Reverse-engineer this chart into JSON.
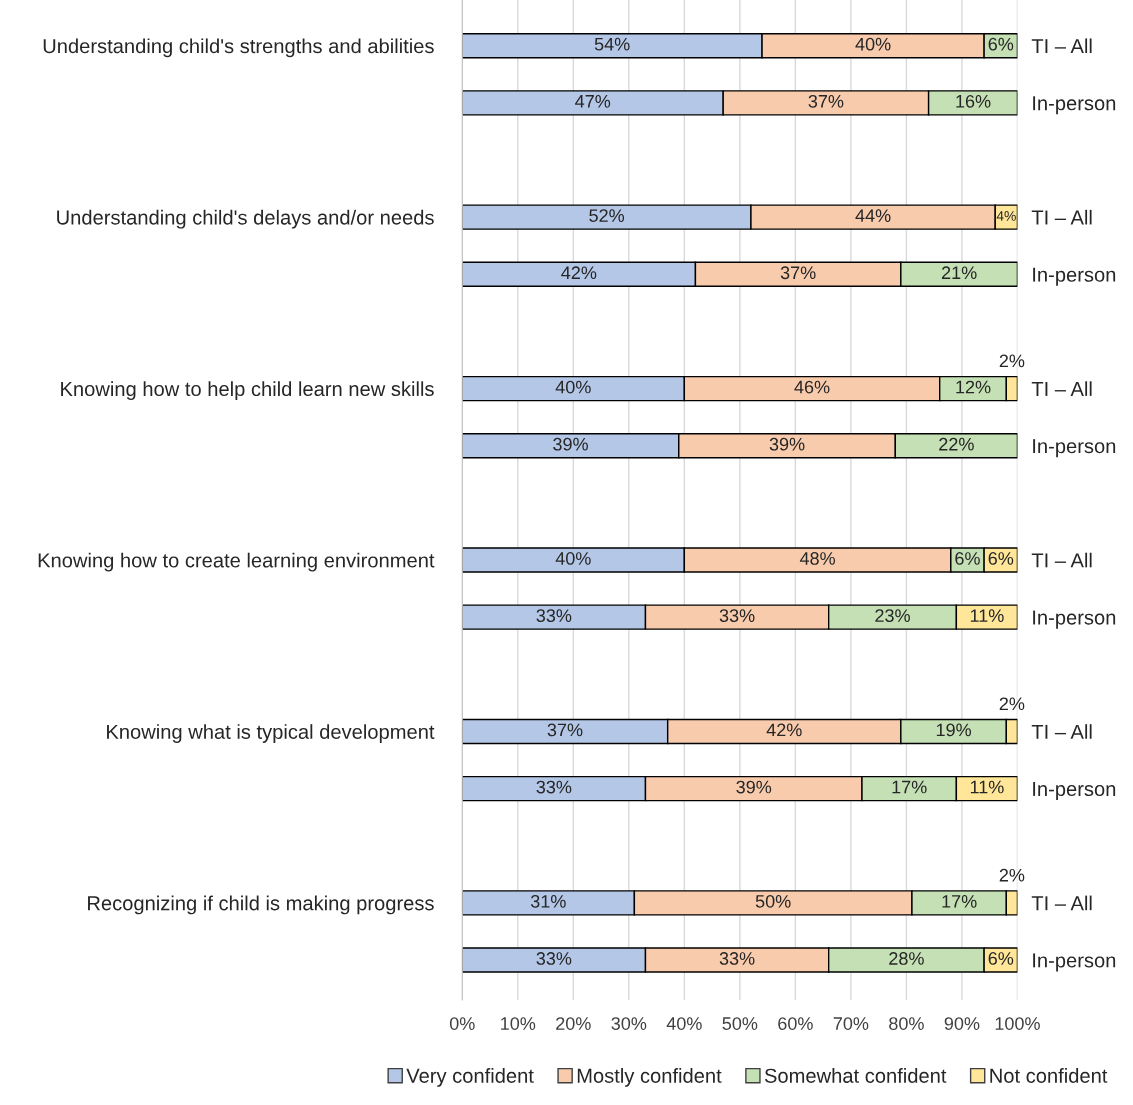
{
  "chart_data": {
    "type": "bar",
    "orientation": "horizontal",
    "stacked": true,
    "categories": [
      "Understanding child's strengths and abilities",
      null,
      "Understanding child's delays and/or needs",
      null,
      "Knowing how to help child learn new skills",
      null,
      "Knowing how to create learning environment",
      null,
      "Knowing what is typical development",
      null,
      "Recognizing if child is making progress",
      null
    ],
    "y2_categories": [
      "TI – All",
      "In-person",
      "TI – All",
      "In-person",
      "TI – All",
      "In-person",
      "TI – All",
      "In-person",
      "TI – All",
      "In-person",
      "TI – All",
      "In-person"
    ],
    "series": [
      {
        "name": "Very confident",
        "color": "#b4c7e7",
        "values": [
          54,
          47,
          52,
          42,
          40,
          39,
          40,
          33,
          37,
          33,
          31,
          33
        ],
        "value_labels": [
          "54%",
          "47%",
          "52%",
          "42%",
          "40%",
          "39%",
          "40%",
          "33%",
          "37%",
          "33%",
          "31%",
          "33%"
        ]
      },
      {
        "name": "Mostly confident",
        "color": "#f8cbad",
        "values": [
          40,
          37,
          44,
          37,
          46,
          39,
          48,
          33,
          42,
          39,
          50,
          33
        ],
        "value_labels": [
          "40%",
          "37%",
          "44%",
          "37%",
          "46%",
          "39%",
          "48%",
          "33%",
          "42%",
          "39%",
          "50%",
          "33%"
        ]
      },
      {
        "name": "Somewhat confident",
        "color": "#c5e0b4",
        "values": [
          6,
          16,
          null,
          21,
          12,
          22,
          6,
          23,
          19,
          17,
          17,
          28
        ],
        "value_labels": [
          "6%",
          "16%",
          null,
          "21%",
          "12%",
          "22%",
          "6%",
          "23%",
          "19%",
          "17%",
          "17%",
          "28%"
        ]
      },
      {
        "name": "Not confident",
        "color": "#ffe699",
        "values": [
          null,
          null,
          4,
          null,
          2,
          null,
          6,
          11,
          2,
          11,
          2,
          6
        ],
        "value_labels": [
          null,
          null,
          "4%",
          null,
          "2%",
          null,
          "6%",
          "11%",
          "2%",
          "11%",
          "2%",
          "6%"
        ]
      }
    ],
    "xlim": [
      0,
      100
    ],
    "xticks": [
      {
        "value": 0,
        "label": "0%"
      },
      {
        "value": 10,
        "label": "10%"
      },
      {
        "value": 20,
        "label": "20%"
      },
      {
        "value": 30,
        "label": "30%"
      },
      {
        "value": 40,
        "label": "40%"
      },
      {
        "value": 50,
        "label": "50%"
      },
      {
        "value": 60,
        "label": "60%"
      },
      {
        "value": 70,
        "label": "70%"
      },
      {
        "value": 80,
        "label": "80%"
      },
      {
        "value": 90,
        "label": "90%"
      },
      {
        "value": 100,
        "label": "100%"
      }
    ],
    "grid": "x",
    "legend": "bottom"
  }
}
